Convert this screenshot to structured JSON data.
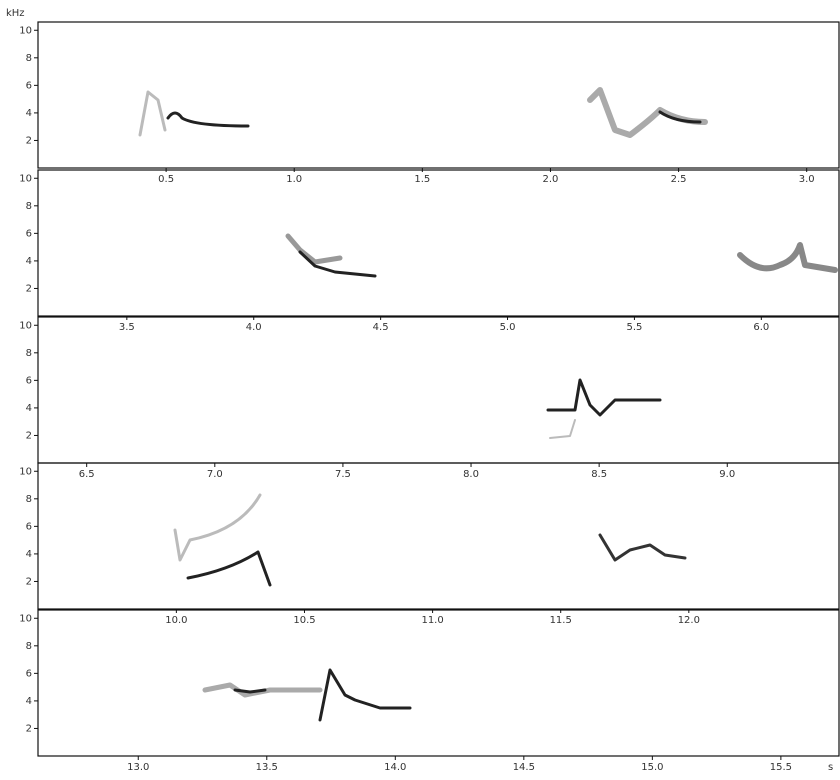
{
  "chart_data": [
    {
      "type": "spectrogram",
      "ylabel": "kHz",
      "xlim": [
        0,
        3.13
      ],
      "ylim": [
        0,
        10.6
      ],
      "xticks": [
        0.5,
        {
          "value": 1,
          "label": "1.0"
        },
        1.5,
        {
          "value": 2,
          "label": "2.0"
        },
        2.5,
        {
          "value": 3,
          "label": "3.0"
        }
      ],
      "yticks": [
        2,
        4,
        6,
        8,
        10
      ]
    },
    {
      "type": "spectrogram",
      "xlim": [
        3.15,
        6.31
      ],
      "ylim": [
        0,
        10.6
      ],
      "xticks": [
        3.5,
        {
          "value": 4,
          "label": "4.0"
        },
        4.5,
        {
          "value": 5,
          "label": "5.0"
        },
        5.5,
        {
          "value": 6,
          "label": "6.0"
        }
      ],
      "yticks": [
        2,
        4,
        6,
        8,
        10
      ]
    },
    {
      "type": "spectrogram",
      "xlim": [
        6.31,
        9.44
      ],
      "ylim": [
        0,
        10.6
      ],
      "xticks": [
        6.5,
        {
          "value": 7,
          "label": "7.0"
        },
        7.5,
        {
          "value": 8,
          "label": "8.0"
        },
        8.5,
        {
          "value": 9,
          "label": "9.0"
        }
      ],
      "yticks": [
        2,
        4,
        6,
        8,
        10
      ]
    },
    {
      "type": "spectrogram",
      "xlim": [
        9.46,
        12.59
      ],
      "ylim": [
        0,
        10.6
      ],
      "xticks": [
        {
          "value": 10,
          "label": "10.0"
        },
        10.5,
        {
          "value": 11,
          "label": "11.0"
        },
        11.5,
        {
          "value": 12,
          "label": "12.0"
        }
      ],
      "yticks": [
        2,
        4,
        6,
        8,
        10
      ]
    },
    {
      "type": "spectrogram",
      "xlabel": "s",
      "xlim": [
        12.61,
        15.73
      ],
      "ylim": [
        0,
        10.6
      ],
      "xticks": [
        {
          "value": 13,
          "label": "13.0"
        },
        13.5,
        {
          "value": 14,
          "label": "14.0"
        },
        14.5,
        {
          "value": 15,
          "label": "15.0"
        },
        15.5
      ],
      "yticks": [
        2,
        4,
        6,
        8,
        10
      ]
    }
  ]
}
